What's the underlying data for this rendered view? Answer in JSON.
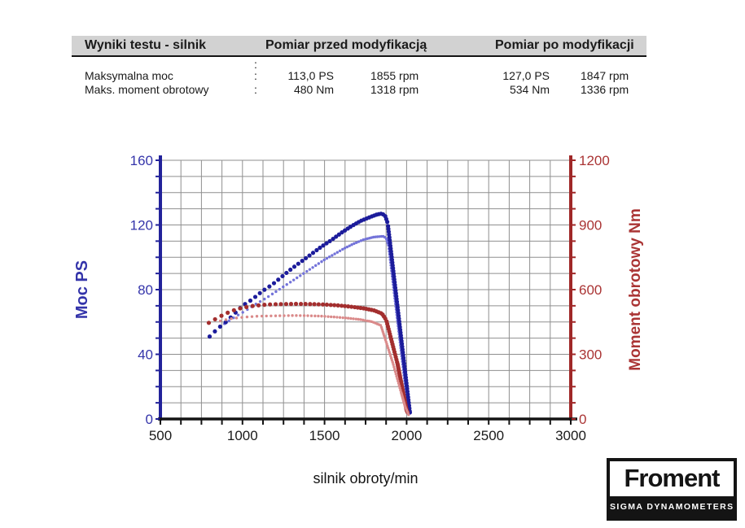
{
  "table": {
    "headers": {
      "results": "Wyniki testu - silnik",
      "before": "Pomiar przed modyfikacją",
      "after": "Pomiar po modyfikacji"
    },
    "separator": ":",
    "rows": [
      {
        "label": "Maksymalna moc",
        "before_value": "113,0 PS",
        "before_rpm": "1855 rpm",
        "after_value": "127,0 PS",
        "after_rpm": "1847 rpm"
      },
      {
        "label": "Maks. moment obrotowy",
        "before_value": "480 Nm",
        "before_rpm": "1318 rpm",
        "after_value": "534 Nm",
        "after_rpm": "1336 rpm"
      }
    ]
  },
  "chart_data": {
    "type": "line",
    "grid": true,
    "x_axis": {
      "label": "silnik obroty/min",
      "min": 500,
      "max": 3000,
      "tick_step": 125,
      "label_step": 500,
      "tick_labels": [
        "500",
        "1000",
        "1500",
        "2000",
        "2500",
        "3000"
      ],
      "color": "#1a1a1a"
    },
    "y_left": {
      "label": "Moc PS",
      "min": 0,
      "max": 160,
      "tick_step": 10,
      "label_step": 40,
      "tick_labels": [
        "0",
        "40",
        "80",
        "120",
        "160"
      ],
      "color": "#3434aa",
      "axis_color": "#22229a"
    },
    "y_right": {
      "label": "Moment obrotowy Nm",
      "min": 0,
      "max": 1200,
      "tick_step": 75,
      "label_step": 300,
      "tick_labels": [
        "0",
        "300",
        "600",
        "900",
        "1200"
      ],
      "color": "#aa3434",
      "axis_color": "#a02828"
    },
    "grid_color": "#8f8f8f",
    "series": [
      {
        "name": "Moc przed modyfikacją",
        "axis": "left",
        "unit": "PS",
        "color": "#7373d9",
        "weight": "light",
        "peak": {
          "value": 113.0,
          "rpm": 1855
        },
        "points": [
          [
            860,
            57
          ],
          [
            900,
            59.5
          ],
          [
            960,
            63.5
          ],
          [
            1020,
            67
          ],
          [
            1080,
            71
          ],
          [
            1140,
            74.5
          ],
          [
            1200,
            78.5
          ],
          [
            1260,
            82.5
          ],
          [
            1320,
            86.5
          ],
          [
            1380,
            90.5
          ],
          [
            1440,
            94.5
          ],
          [
            1500,
            98.5
          ],
          [
            1560,
            102
          ],
          [
            1620,
            105.5
          ],
          [
            1680,
            108.5
          ],
          [
            1740,
            111
          ],
          [
            1800,
            112.5
          ],
          [
            1855,
            113
          ],
          [
            1875,
            112
          ],
          [
            1890,
            107
          ],
          [
            2012,
            3
          ]
        ]
      },
      {
        "name": "Moc po modyfikacji",
        "axis": "left",
        "unit": "PS",
        "color": "#1c1c9b",
        "weight": "bold",
        "peak": {
          "value": 127.0,
          "rpm": 1847
        },
        "points": [
          [
            800,
            51
          ],
          [
            850,
            56
          ],
          [
            900,
            60
          ],
          [
            950,
            65
          ],
          [
            1000,
            70
          ],
          [
            1060,
            74
          ],
          [
            1120,
            79
          ],
          [
            1180,
            83
          ],
          [
            1240,
            88
          ],
          [
            1300,
            93
          ],
          [
            1360,
            97.5
          ],
          [
            1420,
            102
          ],
          [
            1480,
            106.5
          ],
          [
            1540,
            110.5
          ],
          [
            1600,
            115
          ],
          [
            1660,
            119
          ],
          [
            1720,
            122.5
          ],
          [
            1780,
            125
          ],
          [
            1820,
            126.5
          ],
          [
            1847,
            127
          ],
          [
            1868,
            126
          ],
          [
            1885,
            121
          ],
          [
            2020,
            4
          ]
        ]
      },
      {
        "name": "Moment obrotowy po modyfikacji",
        "axis": "right",
        "unit": "Nm",
        "color": "#a32e2e",
        "weight": "bold",
        "peak": {
          "value": 534,
          "rpm": 1336
        },
        "points": [
          [
            795,
            446
          ],
          [
            850,
            470
          ],
          [
            900,
            490
          ],
          [
            950,
            505
          ],
          [
            1000,
            516
          ],
          [
            1060,
            524
          ],
          [
            1120,
            529
          ],
          [
            1180,
            532
          ],
          [
            1250,
            533
          ],
          [
            1336,
            534
          ],
          [
            1420,
            533
          ],
          [
            1500,
            531
          ],
          [
            1580,
            527
          ],
          [
            1660,
            521
          ],
          [
            1740,
            513
          ],
          [
            1800,
            504
          ],
          [
            1850,
            489
          ],
          [
            1876,
            459
          ],
          [
            1945,
            255
          ],
          [
            2000,
            40
          ],
          [
            2008,
            28
          ]
        ]
      },
      {
        "name": "Moment obrotowy przed modyfikacją",
        "axis": "right",
        "unit": "Nm",
        "color": "#da8a8a",
        "weight": "light",
        "peak": {
          "value": 480,
          "rpm": 1318
        },
        "points": [
          [
            865,
            455
          ],
          [
            920,
            464
          ],
          [
            980,
            470
          ],
          [
            1040,
            474
          ],
          [
            1100,
            477
          ],
          [
            1160,
            478
          ],
          [
            1240,
            479
          ],
          [
            1318,
            480
          ],
          [
            1400,
            479
          ],
          [
            1480,
            477
          ],
          [
            1560,
            473
          ],
          [
            1640,
            468
          ],
          [
            1720,
            461
          ],
          [
            1790,
            451
          ],
          [
            1843,
            434
          ],
          [
            1917,
            258
          ],
          [
            1990,
            60
          ],
          [
            2014,
            16
          ]
        ]
      }
    ]
  },
  "logo": {
    "brand": "Froment",
    "tagline": "SIGMA DYNAMOMETERS"
  }
}
